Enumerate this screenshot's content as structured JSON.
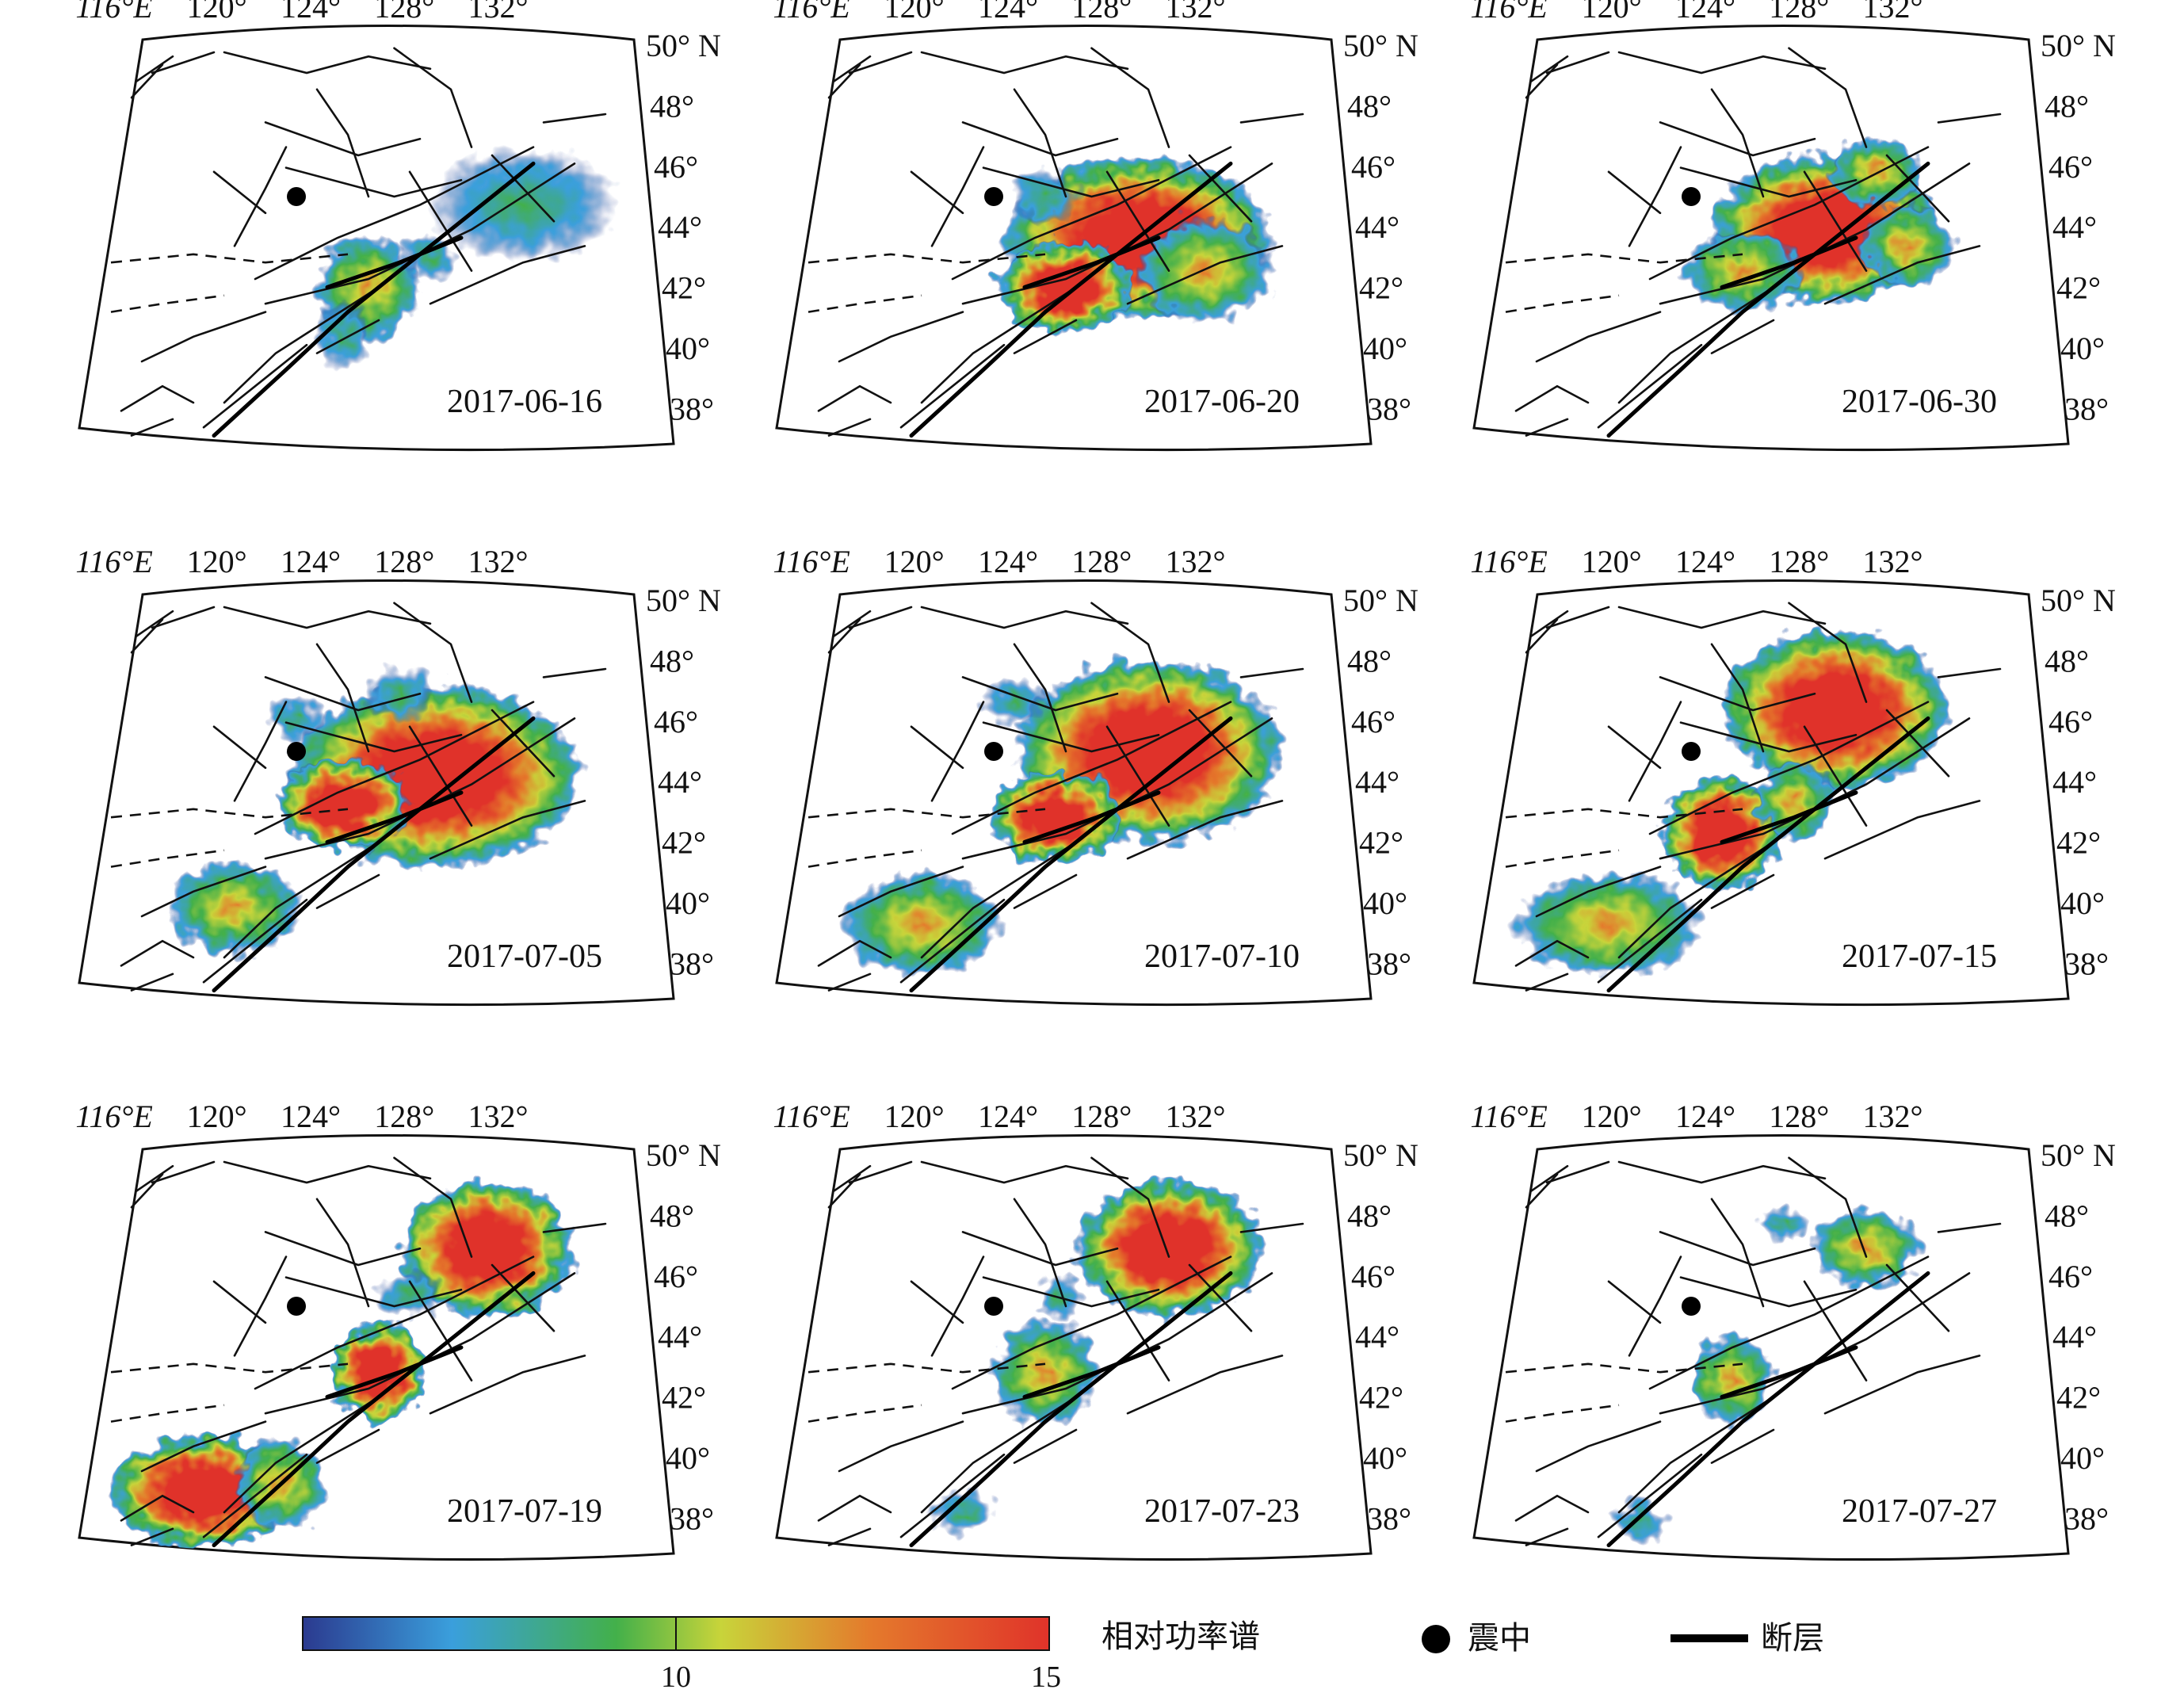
{
  "panels": [
    {
      "date": "2017-06-16",
      "intensity": 0.35,
      "anoms": [
        [
          0.8,
          0.42,
          0.14,
          0.1,
          0.5
        ],
        [
          0.5,
          0.62,
          0.08,
          0.09,
          0.7
        ],
        [
          0.45,
          0.74,
          0.04,
          0.06,
          0.4
        ],
        [
          0.62,
          0.55,
          0.04,
          0.04,
          0.3
        ]
      ]
    },
    {
      "date": "2017-06-20",
      "intensity": 0.95,
      "anoms": [
        [
          0.64,
          0.5,
          0.2,
          0.14,
          1.0
        ],
        [
          0.5,
          0.62,
          0.1,
          0.08,
          0.9
        ],
        [
          0.46,
          0.4,
          0.05,
          0.05,
          0.5
        ],
        [
          0.77,
          0.58,
          0.1,
          0.09,
          0.7
        ]
      ]
    },
    {
      "date": "2017-06-30",
      "intensity": 0.9,
      "anoms": [
        [
          0.62,
          0.48,
          0.17,
          0.13,
          1.0
        ],
        [
          0.46,
          0.58,
          0.09,
          0.07,
          0.8
        ],
        [
          0.72,
          0.34,
          0.07,
          0.06,
          0.6
        ],
        [
          0.78,
          0.52,
          0.07,
          0.07,
          0.6
        ]
      ]
    },
    {
      "date": "2017-07-05",
      "intensity": 1.0,
      "anoms": [
        [
          0.63,
          0.46,
          0.22,
          0.16,
          1.0
        ],
        [
          0.45,
          0.53,
          0.1,
          0.08,
          0.9
        ],
        [
          0.24,
          0.78,
          0.1,
          0.08,
          0.6
        ],
        [
          0.56,
          0.26,
          0.05,
          0.05,
          0.4
        ],
        [
          0.36,
          0.32,
          0.04,
          0.04,
          0.4
        ]
      ]
    },
    {
      "date": "2017-07-10",
      "intensity": 0.95,
      "anoms": [
        [
          0.66,
          0.4,
          0.2,
          0.16,
          1.0
        ],
        [
          0.48,
          0.56,
          0.1,
          0.08,
          0.9
        ],
        [
          0.22,
          0.82,
          0.12,
          0.09,
          0.6
        ],
        [
          0.4,
          0.28,
          0.05,
          0.04,
          0.4
        ]
      ]
    },
    {
      "date": "2017-07-15",
      "intensity": 0.85,
      "anoms": [
        [
          0.64,
          0.3,
          0.17,
          0.14,
          1.0
        ],
        [
          0.42,
          0.6,
          0.09,
          0.1,
          0.9
        ],
        [
          0.2,
          0.82,
          0.14,
          0.09,
          0.6
        ],
        [
          0.56,
          0.52,
          0.06,
          0.07,
          0.6
        ]
      ]
    },
    {
      "date": "2017-07-19",
      "intensity": 0.85,
      "anoms": [
        [
          0.73,
          0.26,
          0.13,
          0.12,
          1.0
        ],
        [
          0.52,
          0.56,
          0.07,
          0.09,
          0.9
        ],
        [
          0.18,
          0.85,
          0.14,
          0.1,
          0.9
        ],
        [
          0.33,
          0.83,
          0.07,
          0.08,
          0.8
        ],
        [
          0.58,
          0.37,
          0.05,
          0.04,
          0.4
        ]
      ]
    },
    {
      "date": "2017-07-23",
      "intensity": 0.75,
      "anoms": [
        [
          0.7,
          0.26,
          0.14,
          0.12,
          1.0
        ],
        [
          0.46,
          0.56,
          0.08,
          0.09,
          0.8
        ],
        [
          0.3,
          0.9,
          0.05,
          0.04,
          0.4
        ],
        [
          0.49,
          0.38,
          0.03,
          0.04,
          0.4
        ]
      ]
    },
    {
      "date": "2017-07-27",
      "intensity": 0.55,
      "anoms": [
        [
          0.7,
          0.26,
          0.08,
          0.07,
          0.8
        ],
        [
          0.44,
          0.58,
          0.06,
          0.08,
          0.7
        ],
        [
          0.26,
          0.92,
          0.04,
          0.04,
          0.4
        ],
        [
          0.54,
          0.2,
          0.04,
          0.03,
          0.4
        ]
      ]
    }
  ],
  "lon_labels": [
    "116°E",
    "120°",
    "124°",
    "128°",
    "132°"
  ],
  "lat_labels": [
    "50° N",
    "48°",
    "46°",
    "44°",
    "42°",
    "40°",
    "38°"
  ],
  "legend": {
    "colorbar_title": "相对功率谱",
    "tick_10": "10",
    "tick_15": "15",
    "epicenter_label": "震中",
    "fault_label": "断层",
    "colors": [
      "#2b3a8f",
      "#3a9fdc",
      "#43b04a",
      "#c8d43a",
      "#e47a2c",
      "#e0332a"
    ]
  }
}
